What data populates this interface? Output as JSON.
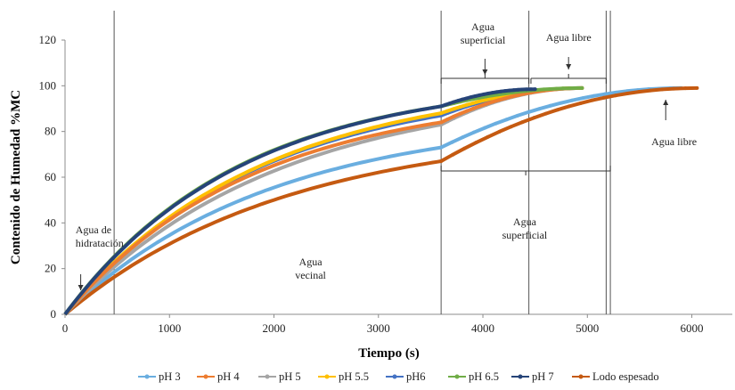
{
  "chart_data": {
    "type": "line",
    "title": "",
    "xlabel": "Tiempo (s)",
    "ylabel": "Contenido de Humedad  %MC",
    "xlim": [
      0,
      6200
    ],
    "ylim": [
      0,
      120
    ],
    "xticks": [
      0,
      1000,
      2000,
      3000,
      4000,
      5000,
      6000
    ],
    "yticks": [
      0,
      20,
      40,
      60,
      80,
      100,
      120
    ],
    "grid": false,
    "legend_position": "bottom",
    "series": [
      {
        "name": "pH 3",
        "color": "#6aaee0",
        "k": 0.000508,
        "lin_end": 3600,
        "y_lin_end": 73,
        "t_end": 5900,
        "y_end": 99
      },
      {
        "name": "pH 4",
        "color": "#ed7d31",
        "k": 0.000555,
        "lin_end": 3600,
        "y_lin_end": 84,
        "t_end": 4950,
        "y_end": 99
      },
      {
        "name": "pH 5",
        "color": "#a5a5a5",
        "k": 0.000496,
        "lin_end": 3600,
        "y_lin_end": 83,
        "t_end": 4950,
        "y_end": 99
      },
      {
        "name": "pH 5.5",
        "color": "#ffc000",
        "k": 0.00053,
        "lin_end": 3600,
        "y_lin_end": 88,
        "t_end": 4950,
        "y_end": 99
      },
      {
        "name": "pH6",
        "color": "#4472c4",
        "k": 0.00054,
        "lin_end": 3600,
        "y_lin_end": 87,
        "t_end": 4950,
        "y_end": 99
      },
      {
        "name": "pH 6.5",
        "color": "#70ad47",
        "k": 0.0006,
        "lin_end": 3600,
        "y_lin_end": 91,
        "t_end": 4950,
        "y_end": 99
      },
      {
        "name": "pH 7",
        "color": "#264478",
        "k": 0.00059,
        "lin_end": 3600,
        "y_lin_end": 91,
        "t_end": 4500,
        "y_end": 98.5
      },
      {
        "name": "Lodo espesado",
        "color": "#c55a11",
        "k": 0.00047,
        "lin_end": 3600,
        "y_lin_end": 67,
        "t_end": 6050,
        "y_end": 99
      }
    ],
    "annotations": [
      {
        "id": "hidratacion",
        "lines": [
          "Agua de",
          "hidratación"
        ],
        "x": 100,
        "y": 34
      },
      {
        "id": "vecinal",
        "lines": [
          "Agua",
          "vecinal"
        ],
        "x": 2350,
        "y": 21
      },
      {
        "id": "superficial-top",
        "lines": [
          "Agua",
          "superficial"
        ],
        "x": 4000,
        "y": 121
      },
      {
        "id": "libre-top",
        "lines": [
          "Agua libre"
        ],
        "x": 4820,
        "y": 117
      },
      {
        "id": "superficial-mid",
        "lines": [
          "Agua",
          "superficial"
        ],
        "x": 4400,
        "y": 38
      },
      {
        "id": "libre-right",
        "lines": [
          "Agua libre"
        ],
        "x": 5830,
        "y": 75
      }
    ],
    "vlines": [
      470,
      3600,
      4440,
      5180,
      5220
    ]
  }
}
